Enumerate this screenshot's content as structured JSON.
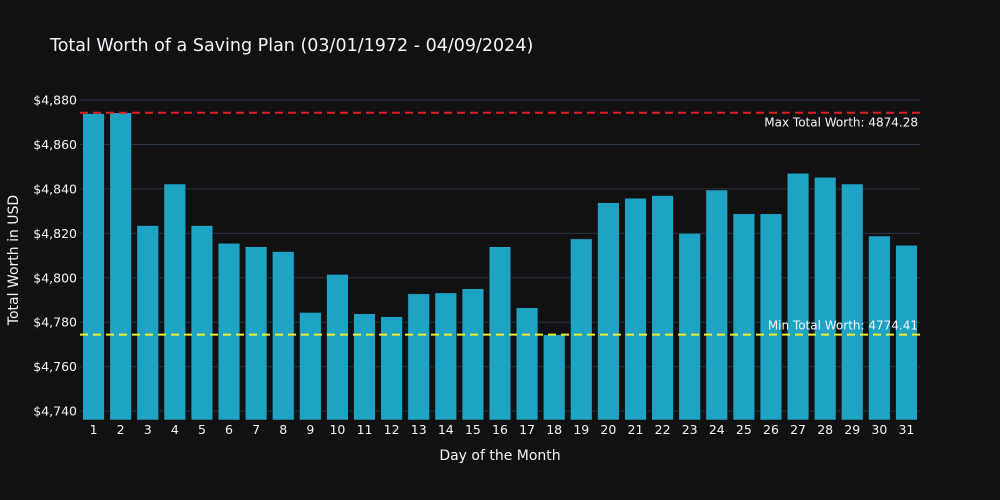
{
  "colors": {
    "background": "#111111",
    "bar": "#1fa3c4",
    "bar_edge": "#111111",
    "grid": "#283442",
    "text": "#f2f5fa",
    "max_line": "#e01e1e",
    "min_line": "#f0f02a"
  },
  "chart_data": {
    "type": "bar",
    "title": "Total Worth of a Saving Plan (03/01/1972 - 04/09/2024)",
    "xlabel": "Day of the Month",
    "ylabel": "Total Worth in USD",
    "categories": [
      "1",
      "2",
      "3",
      "4",
      "5",
      "6",
      "7",
      "8",
      "9",
      "10",
      "11",
      "12",
      "13",
      "14",
      "15",
      "16",
      "17",
      "18",
      "19",
      "20",
      "21",
      "22",
      "23",
      "24",
      "25",
      "26",
      "27",
      "28",
      "29",
      "30",
      "31"
    ],
    "values": [
      4873.9,
      4874.28,
      4823.5,
      4842.2,
      4823.5,
      4815.5,
      4814.0,
      4811.8,
      4784.4,
      4801.5,
      4783.8,
      4782.5,
      4792.8,
      4793.2,
      4795.1,
      4814.0,
      4786.5,
      4774.41,
      4817.5,
      4833.8,
      4835.8,
      4837.0,
      4820.0,
      4839.5,
      4828.8,
      4828.8,
      4847.0,
      4845.2,
      4842.2,
      4818.8,
      4814.6
    ],
    "ylim": [
      4736,
      4880
    ],
    "yticks": [
      4740,
      4760,
      4780,
      4800,
      4820,
      4840,
      4860,
      4880
    ],
    "ytick_labels": [
      "$4,740",
      "$4,760",
      "$4,780",
      "$4,800",
      "$4,820",
      "$4,840",
      "$4,860",
      "$4,880"
    ],
    "grid": true,
    "legend": "none",
    "reference_lines": [
      {
        "type": "max",
        "value": 4874.28,
        "label": "Max Total Worth: 4874.28",
        "color": "#e01e1e",
        "style": "dashed"
      },
      {
        "type": "min",
        "value": 4774.41,
        "label": "Min Total Worth: 4774.41",
        "color": "#f0f02a",
        "style": "dashed"
      }
    ]
  }
}
